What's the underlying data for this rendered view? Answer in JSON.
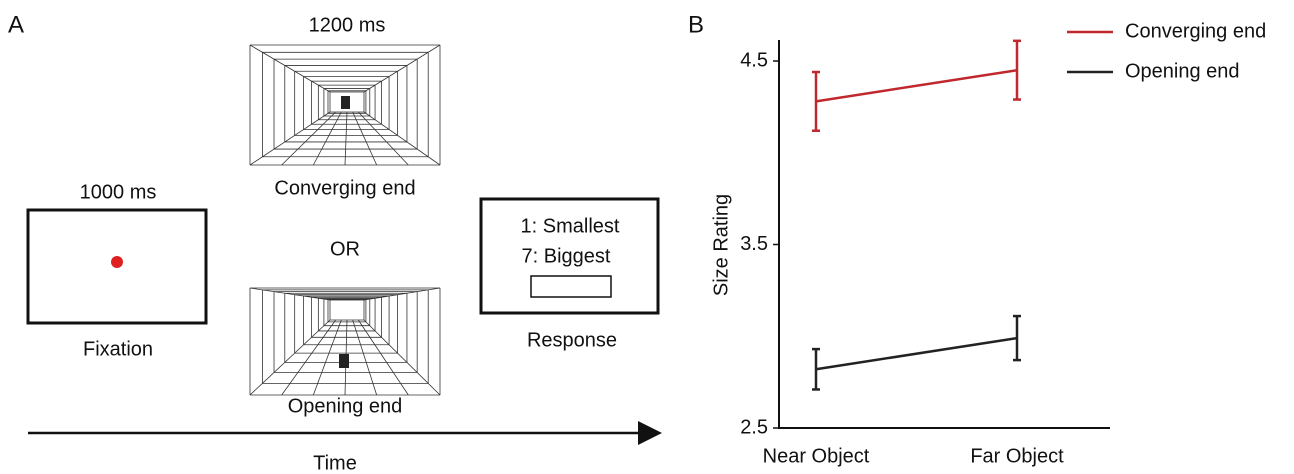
{
  "panel_a": {
    "label": "A",
    "fixation_time": "1000 ms",
    "fixation": "Fixation",
    "stimulus_time": "1200 ms",
    "converging": "Converging end",
    "or": "OR",
    "opening": "Opening end",
    "response_lines": [
      "1: Smallest",
      "7: Biggest"
    ],
    "response": "Response",
    "time": "Time"
  },
  "chart_data": {
    "type": "line",
    "panel_label": "B",
    "y_label": "Size Rating",
    "categories": [
      "Near Object",
      "Far Object"
    ],
    "series": [
      {
        "name": "Converging end",
        "color": "#c0282d",
        "values": [
          4.28,
          4.45
        ],
        "errors": [
          0.16,
          0.16
        ]
      },
      {
        "name": "Opening end",
        "color": "#222222",
        "values": [
          2.82,
          2.99
        ],
        "errors": [
          0.11,
          0.12
        ]
      }
    ],
    "ylim": [
      2.5,
      4.5
    ],
    "yticks": [
      2.5,
      3.5,
      4.5
    ],
    "legend": "upper right"
  }
}
